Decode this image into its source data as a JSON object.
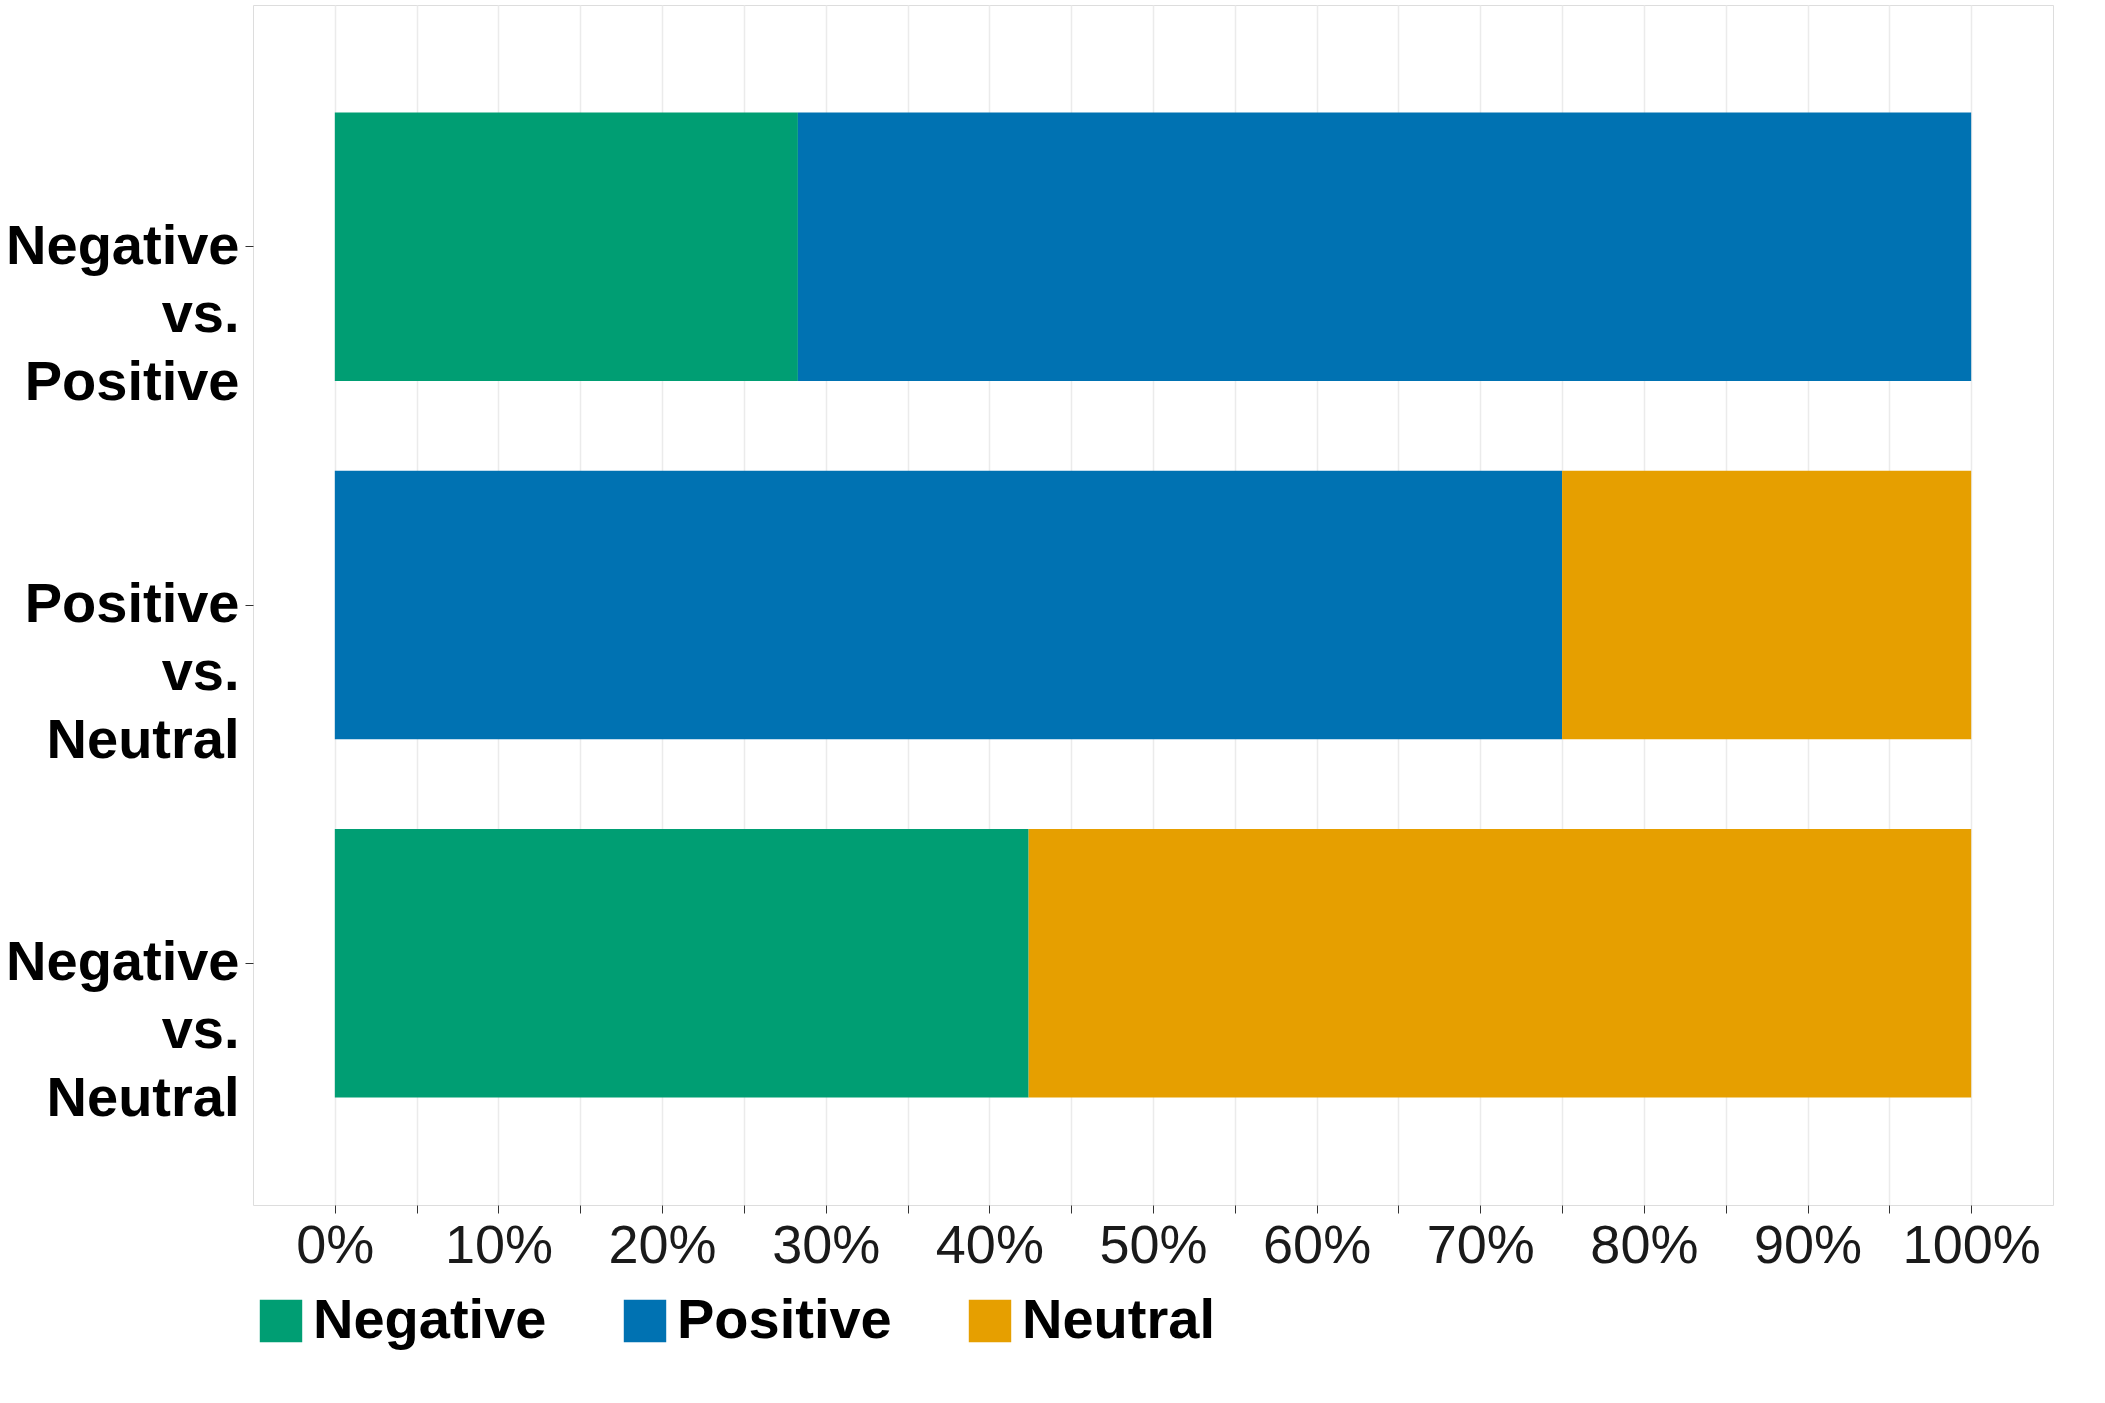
{
  "chart_data": {
    "type": "bar",
    "orientation": "horizontal",
    "stacked": true,
    "categories": [
      "Negative vs. Positive",
      "Positive vs. Neutral",
      "Negative vs. Neutral"
    ],
    "series": [
      {
        "name": "Negative",
        "color": "#009e73",
        "values": [
          28.3,
          null,
          42.4
        ]
      },
      {
        "name": "Positive",
        "color": "#0072b2",
        "values": [
          71.7,
          75.0,
          null
        ]
      },
      {
        "name": "Neutral",
        "color": "#e69f00",
        "values": [
          null,
          25.0,
          57.6
        ]
      }
    ],
    "xlim": [
      -5,
      105
    ],
    "xticks": [
      {
        "value": 0,
        "label": "0%"
      },
      {
        "value": 5,
        "label": null
      },
      {
        "value": 10,
        "label": "10%"
      },
      {
        "value": 15,
        "label": null
      },
      {
        "value": 20,
        "label": "20%"
      },
      {
        "value": 25,
        "label": null
      },
      {
        "value": 30,
        "label": "30%"
      },
      {
        "value": 35,
        "label": null
      },
      {
        "value": 40,
        "label": "40%"
      },
      {
        "value": 45,
        "label": null
      },
      {
        "value": 50,
        "label": "50%"
      },
      {
        "value": 55,
        "label": null
      },
      {
        "value": 60,
        "label": "60%"
      },
      {
        "value": 65,
        "label": null
      },
      {
        "value": 70,
        "label": "70%"
      },
      {
        "value": 75,
        "label": null
      },
      {
        "value": 80,
        "label": "80%"
      },
      {
        "value": 85,
        "label": null
      },
      {
        "value": 90,
        "label": "90%"
      },
      {
        "value": 95,
        "label": null
      },
      {
        "value": 100,
        "label": "100%"
      }
    ],
    "grid": "x",
    "legend": "bottom"
  }
}
